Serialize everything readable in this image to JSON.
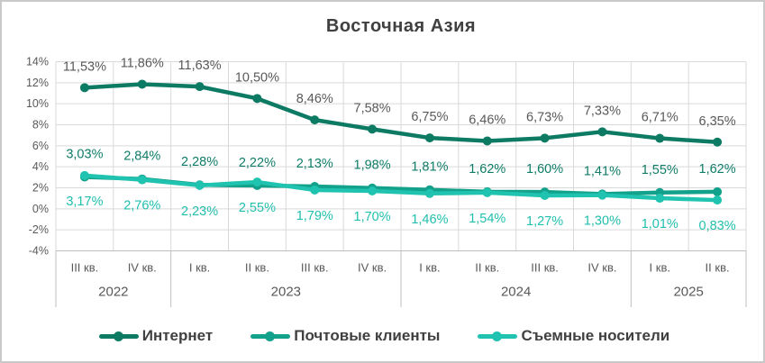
{
  "frame": {
    "background": "#ffffff",
    "border_color": "#c9c9c9"
  },
  "colors": {
    "grid": "#d9d9d9",
    "axis": "#bfbfbf",
    "tick_text": "#595959",
    "category_text": "#595959",
    "title_text": "#404040",
    "legend_text": "#404040"
  },
  "chart_data": {
    "type": "line",
    "title": "Восточная Азия",
    "xlabel": "",
    "ylabel": "",
    "ylim": [
      -4,
      14
    ],
    "y_tick_step": 2,
    "y_tick_labels": [
      "14%",
      "12%",
      "10%",
      "8%",
      "6%",
      "4%",
      "2%",
      "0%",
      "-2%",
      "-4%"
    ],
    "grid": true,
    "legend_position": "bottom",
    "categories": [
      "III кв.",
      "IV кв.",
      "I кв.",
      "II кв.",
      "III кв.",
      "IV кв.",
      "I кв.",
      "II кв.",
      "III кв.",
      "IV кв.",
      "I кв.",
      "II кв."
    ],
    "year_groups": [
      {
        "label": "2022",
        "span": 2
      },
      {
        "label": "2023",
        "span": 4
      },
      {
        "label": "2024",
        "span": 4
      },
      {
        "label": "2025",
        "span": 2
      }
    ],
    "series": [
      {
        "name": "Интернет",
        "color": "#0d7a63",
        "label_color": "#595959",
        "label_side": "above",
        "values": [
          11.53,
          11.86,
          11.63,
          10.5,
          8.46,
          7.58,
          6.75,
          6.46,
          6.73,
          7.33,
          6.71,
          6.35
        ],
        "labels": [
          "11,53%",
          "11,86%",
          "11,63%",
          "10,50%",
          "8,46%",
          "7,58%",
          "6,75%",
          "6,46%",
          "6,73%",
          "7,33%",
          "6,71%",
          "6,35%"
        ]
      },
      {
        "name": "Почтовые клиенты",
        "color": "#12a18b",
        "label_color": "#0f7c68",
        "label_side": "above",
        "values": [
          3.03,
          2.84,
          2.28,
          2.22,
          2.13,
          1.98,
          1.81,
          1.62,
          1.6,
          1.41,
          1.55,
          1.62
        ],
        "labels": [
          "3,03%",
          "2,84%",
          "2,28%",
          "2,22%",
          "2,13%",
          "1,98%",
          "1,81%",
          "1,62%",
          "1,60%",
          "1,41%",
          "1,55%",
          "1,62%"
        ]
      },
      {
        "name": "Съемные носители",
        "color": "#1fc3af",
        "label_color": "#20bfae",
        "label_side": "below",
        "values": [
          3.17,
          2.76,
          2.23,
          2.55,
          1.79,
          1.7,
          1.46,
          1.54,
          1.27,
          1.3,
          1.01,
          0.83
        ],
        "labels": [
          "3,17%",
          "2,76%",
          "2,23%",
          "2,55%",
          "1,79%",
          "1,70%",
          "1,46%",
          "1,54%",
          "1,27%",
          "1,30%",
          "1,01%",
          "0,83%"
        ]
      }
    ]
  }
}
